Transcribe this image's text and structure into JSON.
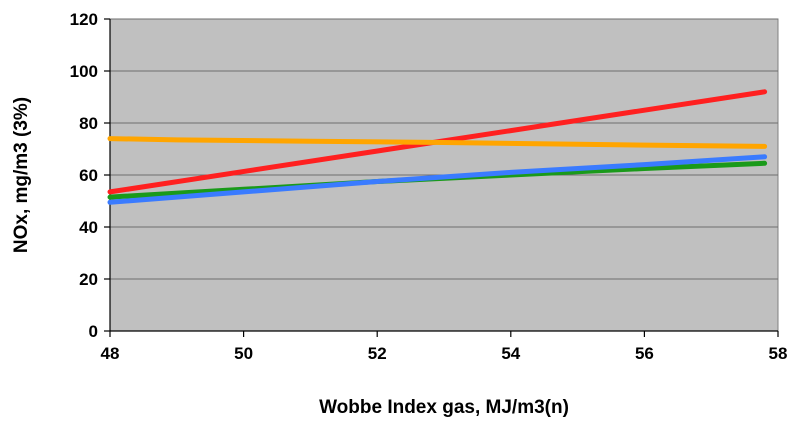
{
  "chart_data": {
    "type": "line",
    "title": "",
    "xlabel": "Wobbe Index gas, MJ/m3(n)",
    "ylabel": "NOx, mg/m3 (3%)",
    "xlim": [
      48,
      58
    ],
    "ylim": [
      0,
      120
    ],
    "x_ticks": [
      "48",
      "50",
      "52",
      "54",
      "56",
      "58"
    ],
    "y_ticks": [
      "0",
      "20",
      "40",
      "60",
      "80",
      "100",
      "120"
    ],
    "grid": true,
    "legend": "none",
    "series": [
      {
        "color": "#ff2020",
        "x": [
          48,
          57.8
        ],
        "y": [
          53.5,
          92
        ]
      },
      {
        "color": "#ffa500",
        "x": [
          48,
          49,
          51,
          53,
          55,
          57.8
        ],
        "y": [
          74,
          73.5,
          73,
          72.5,
          71.8,
          71
        ]
      },
      {
        "color": "#1a9a1a",
        "x": [
          48,
          50,
          52,
          54,
          56,
          57.8
        ],
        "y": [
          51.5,
          54.5,
          57.5,
          60,
          62.5,
          64.5
        ]
      },
      {
        "color": "#3a7bff",
        "x": [
          48,
          50,
          52,
          54,
          56,
          57.8
        ],
        "y": [
          49.5,
          53.5,
          57.5,
          61,
          64,
          67
        ]
      }
    ]
  }
}
